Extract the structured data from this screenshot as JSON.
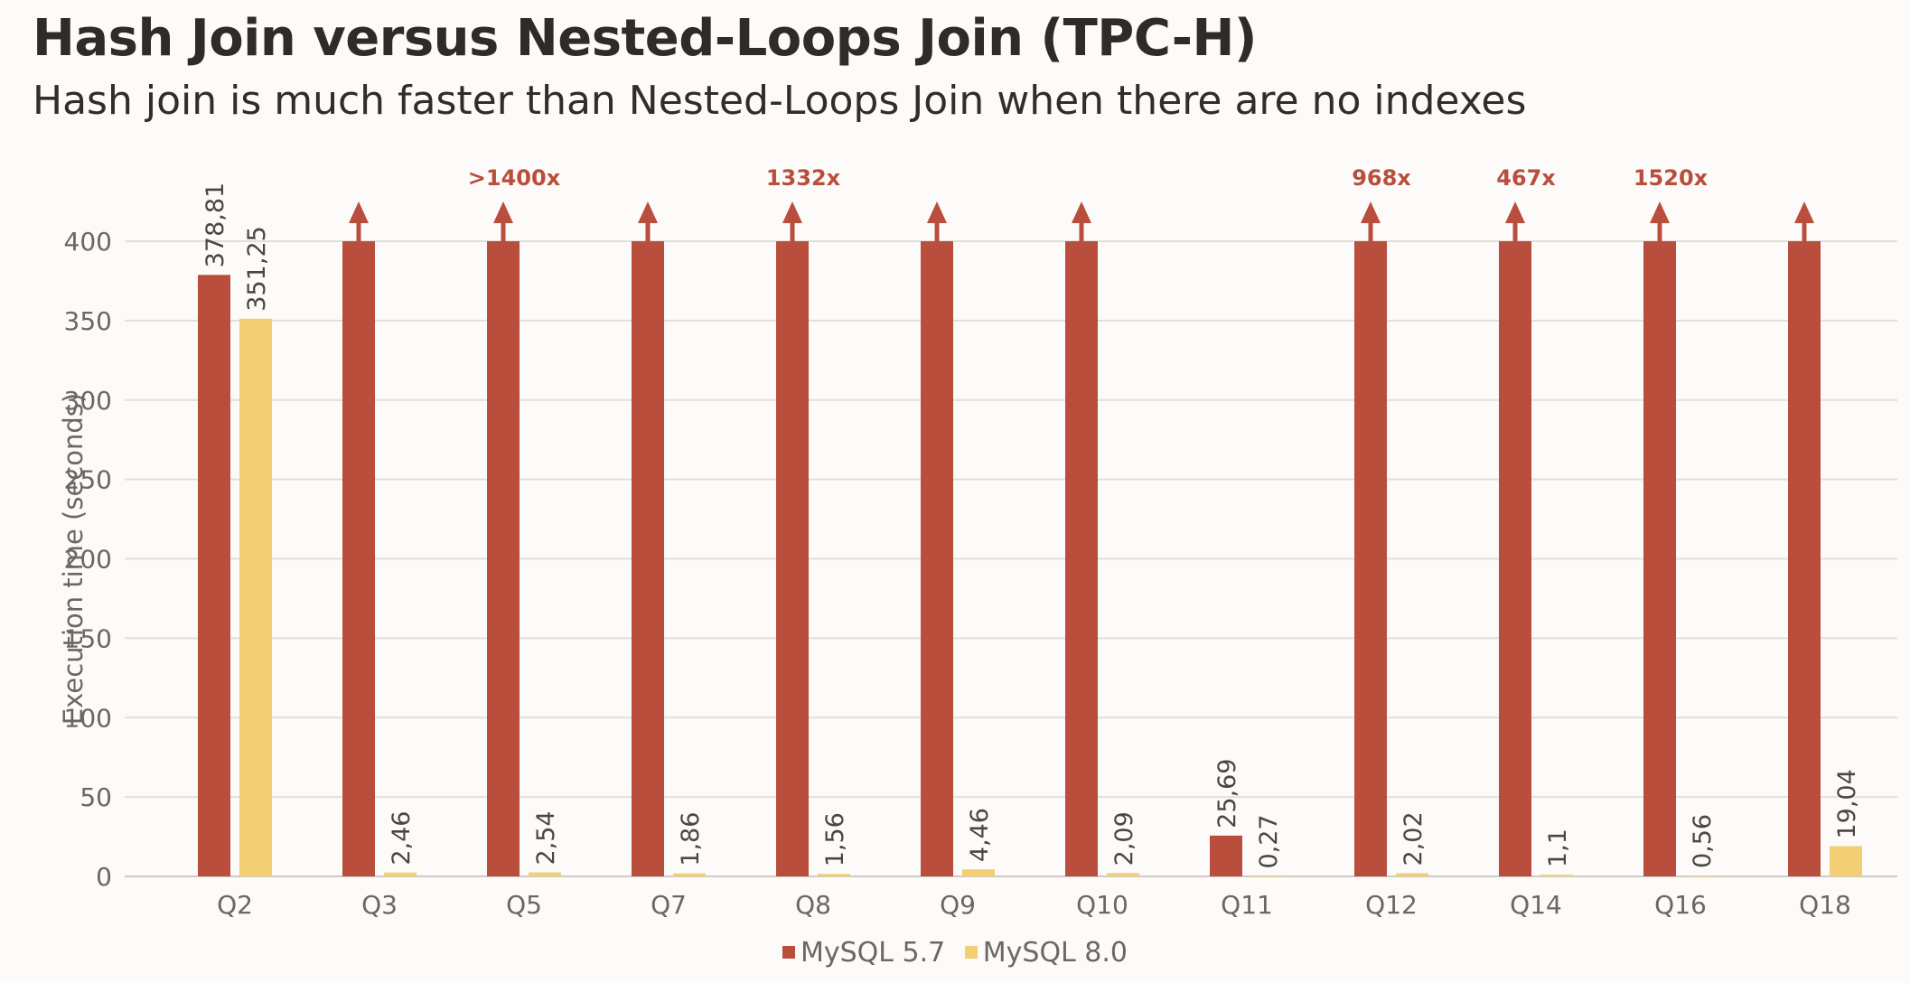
{
  "title": "Hash Join versus Nested-Loops Join (TPC-H)",
  "subtitle": "Hash join is much faster than Nested-Loops Join when there are no indexes",
  "colors": {
    "mysql57": "#b94e3c",
    "mysql80": "#f1cf72",
    "annotation": "#b94e3c",
    "grid": "#e2dfdb",
    "axis_text": "#6b6763",
    "label_text": "#4a4643"
  },
  "chart_data": {
    "type": "bar",
    "title": "",
    "xlabel": "",
    "ylabel": "Execution time (seconds)",
    "ylim": [
      0,
      400
    ],
    "yticks": [
      0,
      50,
      100,
      150,
      200,
      250,
      300,
      350,
      400
    ],
    "grid": true,
    "legend_position": "bottom",
    "categories": [
      "Q2",
      "Q3",
      "Q5",
      "Q7",
      "Q8",
      "Q9",
      "Q10",
      "Q11",
      "Q12",
      "Q14",
      "Q16",
      "Q18"
    ],
    "series": [
      {
        "name": "MySQL 5.7",
        "values": [
          378.81,
          400,
          400,
          400,
          400,
          400,
          400,
          25.69,
          400,
          400,
          400,
          400
        ],
        "labels": [
          "378,81",
          "",
          "",
          "",
          "",
          "",
          "",
          "25,69",
          "",
          "",
          "",
          ""
        ],
        "exceeds_axis": [
          false,
          true,
          true,
          true,
          true,
          true,
          true,
          false,
          true,
          true,
          true,
          true
        ]
      },
      {
        "name": "MySQL 8.0",
        "values": [
          351.25,
          2.46,
          2.54,
          1.86,
          1.56,
          4.46,
          2.09,
          0.27,
          2.02,
          1.1,
          0.56,
          19.04
        ],
        "labels": [
          "351,25",
          "2,46",
          "2,54",
          "1,86",
          "1,56",
          "4,46",
          "2,09",
          "0,27",
          "2,02",
          "1,1",
          "0,56",
          "19,04"
        ]
      }
    ],
    "annotations": [
      {
        "category": "Q5",
        "text": ">1400x"
      },
      {
        "category": "Q8",
        "text": "1332x"
      },
      {
        "category": "Q12",
        "text": "968x"
      },
      {
        "category": "Q14",
        "text": "467x"
      },
      {
        "category": "Q16",
        "text": "1520x"
      }
    ]
  }
}
